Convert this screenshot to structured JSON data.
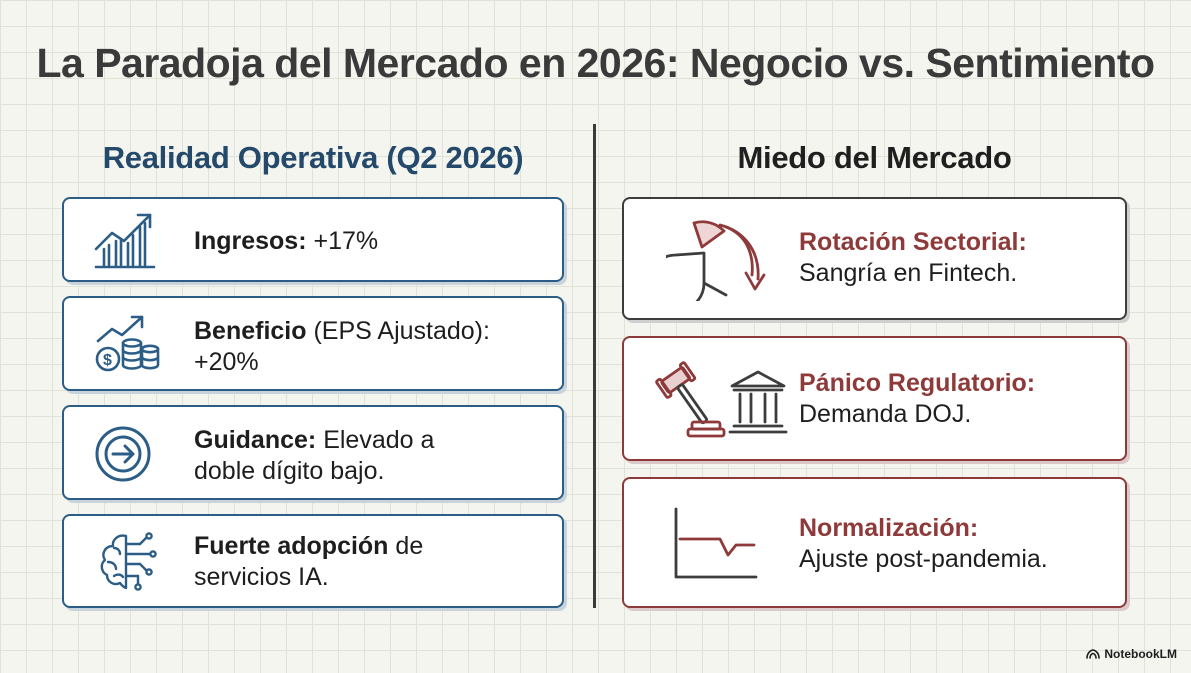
{
  "title": "La Paradoja del Mercado en 2026: Negocio vs. Sentimiento",
  "left_column": {
    "heading": "Realidad Operativa (Q2 2026)",
    "cards": [
      {
        "icon": "growth-chart-icon",
        "bold": "Ingresos:",
        "rest": " +17%"
      },
      {
        "icon": "coins-growth-icon",
        "bold": "Beneficio",
        "rest": " (EPS Ajustado): +20%"
      },
      {
        "icon": "arrow-circle-icon",
        "bold": "Guidance:",
        "rest": " Elevado a doble dígito bajo."
      },
      {
        "icon": "ai-brain-icon",
        "bold": "Fuerte adopción",
        "rest": " de servicios IA."
      }
    ]
  },
  "right_column": {
    "heading": "Miedo del Mercado",
    "cards": [
      {
        "icon": "pie-rotation-icon",
        "heading": "Rotación Sectorial:",
        "text": "Sangría en Fintech."
      },
      {
        "icon": "gavel-bank-icon",
        "heading": "Pánico Regulatorio:",
        "text": "Demanda DOJ."
      },
      {
        "icon": "line-drop-icon",
        "heading": "Normalización:",
        "text": "Ajuste post-pandemia."
      }
    ]
  },
  "colors": {
    "blue": "#2b5d86",
    "red": "#8e3a3a",
    "dark": "#3d3d3d"
  },
  "brand": "NotebookLM"
}
